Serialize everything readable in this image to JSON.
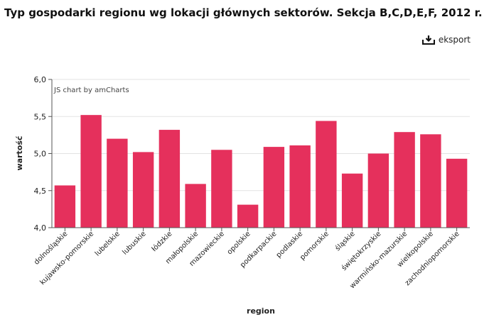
{
  "page": {
    "title": "Typ gospodarki regionu wg lokacji głównych sektorów. Sekcja B,C,D,E,F, 2012 r.",
    "export_label": "eksport"
  },
  "chart_data": {
    "type": "bar",
    "credit": "JS chart by amCharts",
    "xlabel": "region",
    "ylabel": "wartość",
    "ylim": [
      4.0,
      6.0
    ],
    "yticks": [
      "4,0",
      "4,5",
      "5,0",
      "5,5",
      "6,0"
    ],
    "grid": true,
    "bar_color": "#e5305c",
    "categories": [
      "dolnośląskie",
      "kujawsko-pomorskie",
      "lubelskie",
      "lubuskie",
      "łódzkie",
      "małopolskie",
      "mazowieckie",
      "opolskie",
      "podkarpackie",
      "podlaskie",
      "pomorskie",
      "śląskie",
      "świętokrzyskie",
      "warmińsko-mazurskie",
      "wielkopolskie",
      "zachodniopomorskie"
    ],
    "values": [
      4.57,
      5.52,
      5.2,
      5.02,
      5.32,
      4.59,
      5.05,
      4.31,
      5.09,
      5.11,
      5.44,
      4.73,
      5.0,
      5.29,
      5.26,
      4.93
    ]
  }
}
